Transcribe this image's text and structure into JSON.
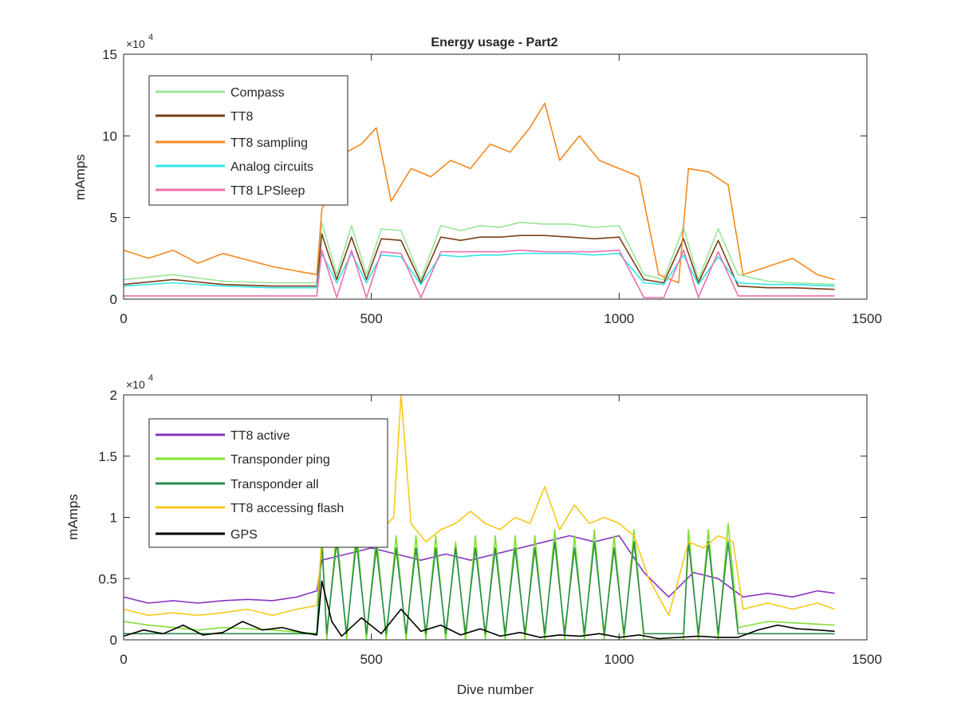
{
  "figure": {
    "title": "Energy usage - Part2"
  },
  "colors": {
    "axis": "#262626",
    "background": "#ffffff",
    "Compass": "#98e698",
    "TT8": "#7a3f1a",
    "TT8 sampling": "#f5881f",
    "Analog circuits": "#33e6e6",
    "TT8 LPSleep": "#ec6fae",
    "TT8 active": "#8a35c0",
    "Transponder ping": "#7fe030",
    "Transponder all": "#2e8b4f",
    "TT8 accessing flash": "#f8c81c",
    "GPS": "#000000"
  },
  "chart_data": [
    {
      "type": "line",
      "title": "Energy usage - Part2",
      "xlabel": "",
      "ylabel": "mAmps",
      "exponent_label": "×10",
      "exponent_power": "4",
      "xlim": [
        0,
        1500
      ],
      "ylim": [
        0,
        150000
      ],
      "xticks": [
        0,
        500,
        1000,
        1500
      ],
      "xtick_labels": [
        "0",
        "500",
        "1000",
        "1500"
      ],
      "yticks": [
        0,
        50000,
        100000,
        150000
      ],
      "ytick_labels": [
        "0",
        "5",
        "10",
        "15"
      ],
      "grid": false,
      "legend": "top-left",
      "series": [
        {
          "name": "Compass",
          "x": [
            0,
            100,
            200,
            300,
            390,
            400,
            430,
            460,
            490,
            520,
            560,
            600,
            640,
            680,
            720,
            760,
            800,
            850,
            900,
            950,
            1000,
            1050,
            1090,
            1130,
            1160,
            1200,
            1240,
            1300,
            1350,
            1435
          ],
          "y": [
            12000,
            15000,
            11000,
            10000,
            10000,
            47000,
            15000,
            45000,
            15000,
            43000,
            42000,
            12000,
            45000,
            42000,
            45000,
            44000,
            47000,
            46000,
            46000,
            44000,
            45000,
            15000,
            12000,
            44000,
            12000,
            43000,
            15000,
            11000,
            10000,
            9000
          ]
        },
        {
          "name": "TT8",
          "x": [
            0,
            100,
            200,
            300,
            390,
            400,
            430,
            460,
            490,
            520,
            560,
            600,
            640,
            680,
            720,
            760,
            800,
            850,
            900,
            950,
            1000,
            1050,
            1090,
            1130,
            1160,
            1200,
            1240,
            1300,
            1350,
            1435
          ],
          "y": [
            9000,
            12000,
            9000,
            8000,
            8000,
            40000,
            12000,
            38000,
            12000,
            37000,
            36000,
            10000,
            38000,
            36000,
            38000,
            38000,
            39000,
            39000,
            38000,
            37000,
            38000,
            12000,
            10000,
            37000,
            10000,
            36000,
            8000,
            7000,
            7000,
            6000
          ]
        },
        {
          "name": "TT8 sampling",
          "x": [
            0,
            50,
            100,
            150,
            200,
            300,
            390,
            400,
            420,
            450,
            480,
            510,
            540,
            580,
            620,
            660,
            700,
            740,
            780,
            820,
            850,
            880,
            920,
            960,
            1000,
            1040,
            1080,
            1120,
            1140,
            1180,
            1220,
            1250,
            1300,
            1350,
            1400,
            1435
          ],
          "y": [
            30000,
            25000,
            30000,
            22000,
            28000,
            20000,
            15000,
            55000,
            70000,
            90000,
            95000,
            105000,
            60000,
            80000,
            75000,
            85000,
            80000,
            95000,
            90000,
            105000,
            120000,
            85000,
            100000,
            85000,
            80000,
            75000,
            15000,
            10000,
            80000,
            78000,
            70000,
            15000,
            20000,
            25000,
            15000,
            12000
          ]
        },
        {
          "name": "Analog circuits",
          "x": [
            0,
            100,
            200,
            300,
            390,
            400,
            430,
            460,
            490,
            520,
            560,
            600,
            640,
            680,
            720,
            760,
            800,
            850,
            900,
            950,
            1000,
            1050,
            1090,
            1130,
            1160,
            1200,
            1240,
            1300,
            1350,
            1435
          ],
          "y": [
            8000,
            10000,
            8000,
            7000,
            7000,
            28000,
            10000,
            28000,
            10000,
            27000,
            26000,
            9000,
            27000,
            26000,
            27000,
            27000,
            28000,
            28000,
            28000,
            27000,
            28000,
            10000,
            9000,
            27000,
            9000,
            26000,
            10000,
            9000,
            9000,
            8000
          ]
        },
        {
          "name": "TT8 LPSleep",
          "x": [
            0,
            100,
            200,
            300,
            390,
            400,
            430,
            460,
            490,
            520,
            560,
            600,
            640,
            680,
            720,
            760,
            800,
            850,
            900,
            950,
            1000,
            1050,
            1090,
            1130,
            1160,
            1200,
            1240,
            1300,
            1350,
            1435
          ],
          "y": [
            2000,
            2000,
            2000,
            2000,
            2000,
            30000,
            1000,
            30000,
            1000,
            29000,
            28000,
            1000,
            29000,
            29000,
            29000,
            29000,
            30000,
            29000,
            29000,
            29000,
            30000,
            1000,
            1000,
            30000,
            1000,
            29000,
            2000,
            2000,
            2000,
            2000
          ]
        }
      ]
    },
    {
      "type": "line",
      "title": "",
      "xlabel": "Dive number",
      "ylabel": "mAmps",
      "exponent_label": "×10",
      "exponent_power": "4",
      "xlim": [
        0,
        1500
      ],
      "ylim": [
        0,
        20000
      ],
      "xticks": [
        0,
        500,
        1000,
        1500
      ],
      "xtick_labels": [
        "0",
        "500",
        "1000",
        "1500"
      ],
      "yticks": [
        0,
        5000,
        10000,
        15000,
        20000
      ],
      "ytick_labels": [
        "0",
        "0.5",
        "1",
        "1.5",
        "2"
      ],
      "grid": false,
      "legend": "top-left",
      "series": [
        {
          "name": "TT8 active",
          "x": [
            0,
            50,
            100,
            150,
            200,
            250,
            300,
            350,
            390,
            400,
            450,
            500,
            550,
            600,
            650,
            700,
            750,
            800,
            850,
            900,
            950,
            1000,
            1050,
            1100,
            1150,
            1200,
            1250,
            1300,
            1350,
            1400,
            1435
          ],
          "y": [
            3500,
            3000,
            3200,
            3000,
            3200,
            3300,
            3200,
            3500,
            4000,
            6500,
            7000,
            7500,
            7000,
            6500,
            7000,
            6500,
            7000,
            7500,
            8000,
            8500,
            8000,
            8500,
            5500,
            3500,
            5500,
            5000,
            3500,
            3800,
            3500,
            4000,
            3800
          ]
        },
        {
          "name": "Transponder ping",
          "x": [
            0,
            50,
            100,
            150,
            200,
            300,
            390,
            400,
            410,
            430,
            450,
            470,
            490,
            510,
            530,
            550,
            570,
            590,
            610,
            630,
            650,
            670,
            690,
            710,
            730,
            750,
            770,
            790,
            810,
            830,
            850,
            870,
            890,
            910,
            930,
            950,
            970,
            990,
            1010,
            1030,
            1050,
            1080,
            1130,
            1140,
            1160,
            1180,
            1200,
            1220,
            1240,
            1300,
            1435
          ],
          "y": [
            1500,
            1200,
            1000,
            800,
            1000,
            800,
            500,
            9000,
            0,
            9000,
            0,
            9000,
            0,
            8500,
            0,
            8500,
            0,
            8500,
            0,
            8500,
            0,
            8000,
            0,
            8500,
            0,
            8500,
            0,
            8500,
            0,
            8500,
            0,
            9000,
            0,
            8500,
            0,
            9000,
            0,
            8500,
            0,
            9000,
            0,
            0,
            0,
            9000,
            0,
            9000,
            0,
            9500,
            1000,
            1500,
            1200
          ]
        },
        {
          "name": "Transponder all",
          "x": [
            0,
            100,
            200,
            300,
            390,
            400,
            410,
            430,
            450,
            470,
            490,
            510,
            530,
            550,
            570,
            590,
            610,
            630,
            650,
            670,
            690,
            710,
            730,
            750,
            770,
            790,
            810,
            830,
            850,
            870,
            890,
            910,
            930,
            950,
            970,
            990,
            1010,
            1030,
            1050,
            1080,
            1130,
            1140,
            1160,
            1180,
            1200,
            1220,
            1240,
            1435
          ],
          "y": [
            500,
            500,
            500,
            500,
            500,
            8000,
            500,
            8000,
            500,
            8000,
            500,
            7500,
            500,
            7500,
            500,
            7500,
            500,
            7500,
            500,
            7500,
            500,
            7500,
            500,
            7500,
            500,
            7500,
            500,
            7500,
            500,
            8000,
            500,
            7500,
            500,
            8000,
            500,
            7500,
            500,
            8000,
            500,
            500,
            500,
            8000,
            500,
            8000,
            500,
            8000,
            500,
            500
          ]
        },
        {
          "name": "TT8 accessing flash",
          "x": [
            0,
            50,
            100,
            150,
            200,
            250,
            300,
            350,
            390,
            400,
            430,
            460,
            490,
            520,
            545,
            560,
            580,
            610,
            640,
            670,
            700,
            730,
            760,
            790,
            820,
            850,
            880,
            910,
            940,
            970,
            1000,
            1030,
            1060,
            1100,
            1140,
            1170,
            1200,
            1230,
            1250,
            1300,
            1350,
            1400,
            1435
          ],
          "y": [
            2500,
            2000,
            2200,
            2000,
            2200,
            2500,
            2000,
            2500,
            2800,
            8000,
            9000,
            8500,
            9500,
            9000,
            10000,
            20000,
            9500,
            8000,
            9000,
            9500,
            10500,
            9500,
            9000,
            10000,
            9500,
            12500,
            9000,
            11000,
            9500,
            10000,
            9500,
            8500,
            5000,
            2000,
            8000,
            7500,
            8500,
            8000,
            2500,
            3000,
            2500,
            3000,
            2500
          ]
        },
        {
          "name": "GPS",
          "x": [
            0,
            40,
            80,
            120,
            160,
            200,
            240,
            280,
            320,
            360,
            390,
            400,
            420,
            440,
            480,
            520,
            560,
            600,
            640,
            680,
            720,
            760,
            800,
            840,
            880,
            920,
            960,
            1000,
            1040,
            1080,
            1120,
            1160,
            1200,
            1240,
            1280,
            1320,
            1360,
            1400,
            1435
          ],
          "y": [
            300,
            800,
            500,
            1200,
            400,
            600,
            1500,
            800,
            1000,
            600,
            400,
            4800,
            1500,
            300,
            1800,
            500,
            2500,
            700,
            1200,
            400,
            900,
            300,
            600,
            200,
            400,
            300,
            500,
            200,
            400,
            100,
            200,
            300,
            200,
            200,
            800,
            1200,
            900,
            800,
            700
          ]
        }
      ]
    }
  ]
}
